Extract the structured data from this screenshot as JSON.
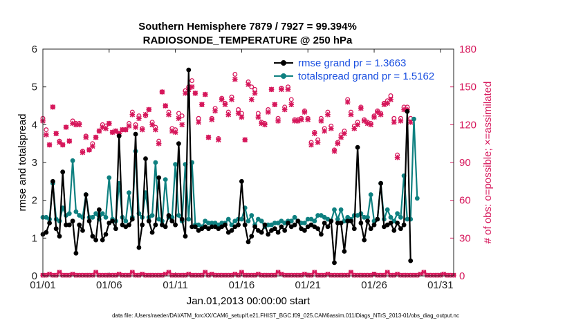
{
  "chart_data": {
    "type": "line",
    "title_line1": "Southern Hemisphere 7879 / 7927 = 99.394%",
    "title_line2": "RADIOSONDE_TEMPERATURE @ 250 hPa",
    "xlabel": "Jan.01,2013 00:00:00 start",
    "ylabel_left": "rmse and totalspread",
    "ylabel_right": "# of obs: o=possible; ×=assimilated",
    "footnote": "data file: /Users/raeder/DAI/ATM_forcXX/CAM6_setup/f.e21.FHIST_BGC.f09_025.CAM6assim.011/Diags_NTrS_2013-01/obs_diag_output.nc",
    "xlim": [
      1,
      32
    ],
    "ylim_left": [
      0,
      6
    ],
    "ylim_right": [
      0,
      180
    ],
    "x_ticks": [
      1,
      6,
      11,
      16,
      21,
      26,
      31
    ],
    "x_tick_labels": [
      "01/01",
      "01/06",
      "01/11",
      "01/16",
      "01/21",
      "01/26",
      "01/31"
    ],
    "y_left_ticks": [
      "0",
      "1",
      "2",
      "3",
      "4",
      "5",
      "6"
    ],
    "y_right_ticks": [
      "0",
      "30",
      "60",
      "90",
      "120",
      "150",
      "180"
    ],
    "colors": {
      "rmse": "#000000",
      "spread": "#0e8080",
      "obs": "#d6175b",
      "legend_text": "#1a4fe0"
    },
    "legend": [
      "rmse grand pr = 1.3663",
      "totalspread grand pr = 1.5162"
    ],
    "t0": 1.0,
    "dt": 0.25,
    "rmse": [
      1.1,
      1.15,
      1.4,
      2.5,
      1.25,
      1.05,
      2.75,
      1.35,
      1.35,
      1.45,
      0.6,
      1.35,
      1.2,
      2.15,
      1.45,
      1.05,
      0.95,
      1.75,
      0.95,
      1.1,
      1.4,
      1.45,
      1.25,
      3.7,
      1.35,
      1.3,
      1.35,
      1.5,
      3.75,
      0.75,
      1.35,
      3.1,
      1.45,
      1.15,
      1.35,
      2.6,
      1.35,
      1.3,
      1.6,
      1.45,
      1.35,
      3.5,
      1.5,
      1.05,
      5.45,
      1.3,
      1.3,
      1.2,
      1.25,
      1.3,
      1.25,
      1.3,
      1.3,
      1.25,
      1.3,
      1.35,
      1.15,
      1.2,
      1.3,
      1.35,
      2.5,
      1.35,
      0.9,
      1.05,
      1.3,
      1.2,
      1.15,
      1.35,
      1.1,
      1.2,
      1.25,
      1.15,
      1.3,
      1.2,
      1.4,
      1.3,
      1.35,
      1.45,
      1.25,
      1.2,
      1.3,
      1.35,
      1.3,
      1.25,
      1.1,
      1.4,
      1.3,
      1.45,
      0.35,
      1.4,
      1.4,
      0.65,
      1.45,
      1.45,
      1.25,
      3.4,
      1.4,
      0.95,
      1.45,
      1.25,
      1.35,
      1.5,
      2.45,
      1.3,
      1.35,
      1.4,
      1.2,
      1.4,
      1.25,
      1.35,
      4.35,
      0.4
    ],
    "spread": [
      1.55,
      1.55,
      1.5,
      2.45,
      1.5,
      1.45,
      1.8,
      1.6,
      1.65,
      3.05,
      1.7,
      1.6,
      1.55,
      2.15,
      1.55,
      1.55,
      1.65,
      1.5,
      1.65,
      1.55,
      2.6,
      1.5,
      1.45,
      2.45,
      1.55,
      1.45,
      2.2,
      1.55,
      3.3,
      1.65,
      1.55,
      2.2,
      1.55,
      1.6,
      3.0,
      1.5,
      1.45,
      2.55,
      1.55,
      1.55,
      2.95,
      1.6,
      1.45,
      2.95,
      1.5,
      3.0,
      1.35,
      1.35,
      1.3,
      1.45,
      1.4,
      1.4,
      1.4,
      1.35,
      1.4,
      1.4,
      1.5,
      1.35,
      1.45,
      1.5,
      1.5,
      1.8,
      1.45,
      1.6,
      1.35,
      1.5,
      1.45,
      1.3,
      1.35,
      1.35,
      1.4,
      1.4,
      1.45,
      1.4,
      1.45,
      1.45,
      1.55,
      1.45,
      1.4,
      1.4,
      1.5,
      1.5,
      1.45,
      1.6,
      1.6,
      1.55,
      1.5,
      1.45,
      1.75,
      1.5,
      1.75,
      1.45,
      1.55,
      1.5,
      1.6,
      1.6,
      1.65,
      1.55,
      1.55,
      2.15,
      1.45,
      1.5,
      2.45,
      1.5,
      1.75,
      1.55,
      1.45,
      1.65,
      1.55,
      2.65,
      1.5,
      1.5,
      4.15,
      2.05
    ],
    "obs_possible": [
      125,
      116,
      104,
      134,
      113,
      107,
      104,
      118,
      107,
      123,
      121,
      121,
      99,
      111,
      100,
      105,
      110,
      115,
      120,
      119,
      121,
      114,
      115,
      113,
      116,
      116,
      121,
      130,
      120,
      127,
      117,
      127,
      132,
      122,
      118,
      107,
      146,
      135,
      130,
      117,
      116,
      129,
      127,
      147,
      150,
      155,
      145,
      125,
      136,
      144,
      110,
      125,
      133,
      109,
      141,
      137,
      130,
      142,
      160,
      132,
      129,
      108,
      154,
      150,
      148,
      129,
      122,
      121,
      132,
      148,
      136,
      125,
      149,
      134,
      150,
      140,
      124,
      124,
      125,
      131,
      125,
      106,
      114,
      108,
      125,
      117,
      130,
      119,
      100,
      106,
      112,
      115,
      140,
      130,
      119,
      122,
      134,
      124,
      122,
      121,
      127,
      131,
      129,
      137,
      139,
      143,
      125,
      96,
      125,
      134,
      134,
      125
    ],
    "obs_assimilated": [
      123,
      112,
      104,
      134,
      113,
      106,
      104,
      118,
      107,
      121,
      120,
      120,
      98,
      110,
      100,
      103,
      110,
      115,
      118,
      117,
      121,
      114,
      115,
      113,
      116,
      116,
      119,
      128,
      118,
      125,
      116,
      128,
      132,
      120,
      116,
      105,
      146,
      135,
      128,
      115,
      114,
      125,
      120,
      145,
      148,
      150,
      145,
      122,
      136,
      144,
      110,
      124,
      131,
      108,
      140,
      136,
      128,
      140,
      156,
      129,
      126,
      108,
      152,
      140,
      145,
      126,
      121,
      120,
      130,
      148,
      136,
      123,
      148,
      132,
      148,
      136,
      123,
      123,
      124,
      130,
      124,
      104,
      113,
      106,
      123,
      115,
      128,
      117,
      99,
      105,
      110,
      113,
      138,
      128,
      117,
      120,
      133,
      123,
      121,
      120,
      126,
      130,
      128,
      136,
      137,
      140,
      122,
      94,
      123,
      132,
      132,
      122
    ]
  }
}
